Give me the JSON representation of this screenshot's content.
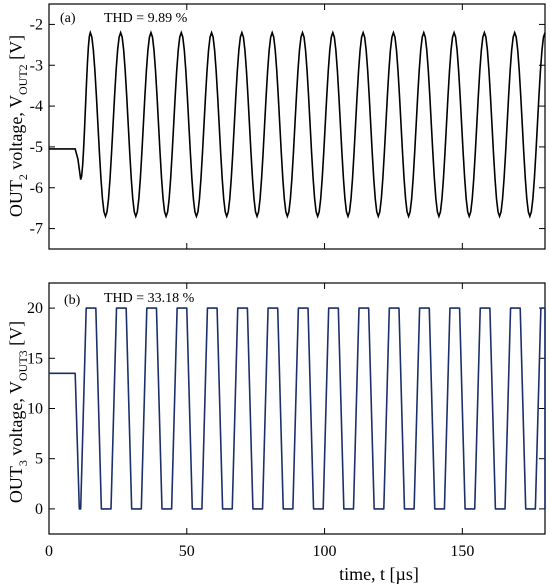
{
  "chart_data": [
    {
      "panel": "(a)",
      "type": "line",
      "annotation": "THD = 9.89 %",
      "ylabel": "OUT",
      "ylabel_sub": "2",
      "ylabel_mid": " voltage, V",
      "ylabel_sub2": "OUT2",
      "ylabel_unit": " [V]",
      "xlim": [
        0,
        180
      ],
      "ylim": [
        -7.5,
        -1.5
      ],
      "yticks": [
        -7,
        -6,
        -5,
        -4,
        -3,
        -2
      ],
      "ytick_labels": [
        "-7",
        "-6",
        "-5",
        "-4",
        "-3",
        "-2"
      ],
      "line_color": "#000000",
      "grid": false,
      "series": [
        {
          "x": [
            0,
            9.5,
            10.5,
            11.5,
            15,
            20.5,
            26,
            31.5,
            37,
            42.5,
            48,
            53.5,
            59,
            64.5,
            70,
            75.5,
            81,
            86.5,
            92,
            97.5,
            103,
            108.5,
            114,
            119.5,
            125,
            130.5,
            136,
            141.5,
            147,
            152.5,
            158,
            163.5,
            169,
            174.5,
            180
          ],
          "y": [
            -5.05,
            -5.05,
            -5.3,
            -5.8,
            -2.2,
            -6.7,
            -2.2,
            -6.7,
            -2.2,
            -6.7,
            -2.2,
            -6.7,
            -2.2,
            -6.7,
            -2.2,
            -6.7,
            -2.2,
            -6.7,
            -2.2,
            -6.7,
            -2.2,
            -6.7,
            -2.2,
            -6.7,
            -2.2,
            -6.7,
            -2.2,
            -6.7,
            -2.2,
            -6.7,
            -2.2,
            -6.7,
            -2.2,
            -6.7,
            -2.2
          ]
        }
      ]
    },
    {
      "panel": "(b)",
      "type": "line",
      "annotation": "THD = 33.18 %",
      "ylabel": "OUT",
      "ylabel_sub": "3",
      "ylabel_mid": " voltage, V",
      "ylabel_sub2": "OUT3",
      "ylabel_unit": " [V]",
      "xlabel": "time, t [µs]",
      "xlim": [
        0,
        180
      ],
      "ylim": [
        -2.5,
        22.5
      ],
      "xticks": [
        0,
        50,
        100,
        150
      ],
      "xtick_labels": [
        "0",
        "50",
        "100",
        "150"
      ],
      "yticks": [
        0,
        5,
        10,
        15,
        20
      ],
      "ytick_labels": [
        "0",
        "5",
        "10",
        "15",
        "20"
      ],
      "line_color": "#1c2f6b",
      "grid": false,
      "initial_level": 13.5,
      "first_fall_start": 9.5,
      "first_low": 11.0,
      "square_wave": {
        "period": 11.0,
        "high": 20.0,
        "low": 0.0,
        "first_rise": 11.5,
        "rise_time": 2.0,
        "high_duration": 3.5,
        "fall_time": 2.0
      }
    }
  ]
}
